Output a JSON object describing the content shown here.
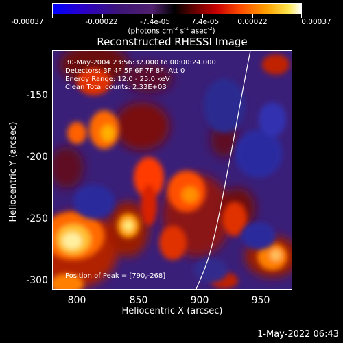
{
  "colorbar": {
    "labels": [
      "-0.00037",
      "-0.00022",
      "-7.4e-05",
      "7.4e-05",
      "0.00022",
      "0.00037"
    ],
    "units_prefix": "(photons cm",
    "units_exp1": "-2",
    "units_mid1": " s",
    "units_exp2": "-1",
    "units_mid2": " asec",
    "units_exp3": "-2",
    "units_suffix": ")"
  },
  "title": "Reconstructed RHESSI Image",
  "info": {
    "time_range": "30-May-2004 23:56:32.000 to 00:00:24.000",
    "detectors": "Detectors: 3F 4F 5F 6F 7F 8F, Att 0",
    "energy": "Energy Range: 12.0 - 25.0 keV",
    "clean": "Clean    Total counts: 2.33E+03",
    "peak": "Position of Peak = [790,-268]"
  },
  "axes": {
    "xlabel": "Heliocentric X (arcsec)",
    "ylabel": "Heliocentric Y (arcsec)",
    "xticks": [
      "800",
      "850",
      "900",
      "950"
    ],
    "yticks": [
      "-150",
      "-200",
      "-250",
      "-300"
    ],
    "xlim": [
      780,
      975
    ],
    "ylim": [
      -305,
      -110
    ]
  },
  "timestamp": "1-May-2022 06:43",
  "colors": {
    "background": "#000000",
    "text": "#ffffff",
    "cool": "#3a1f78",
    "hot": "#ffffff"
  }
}
